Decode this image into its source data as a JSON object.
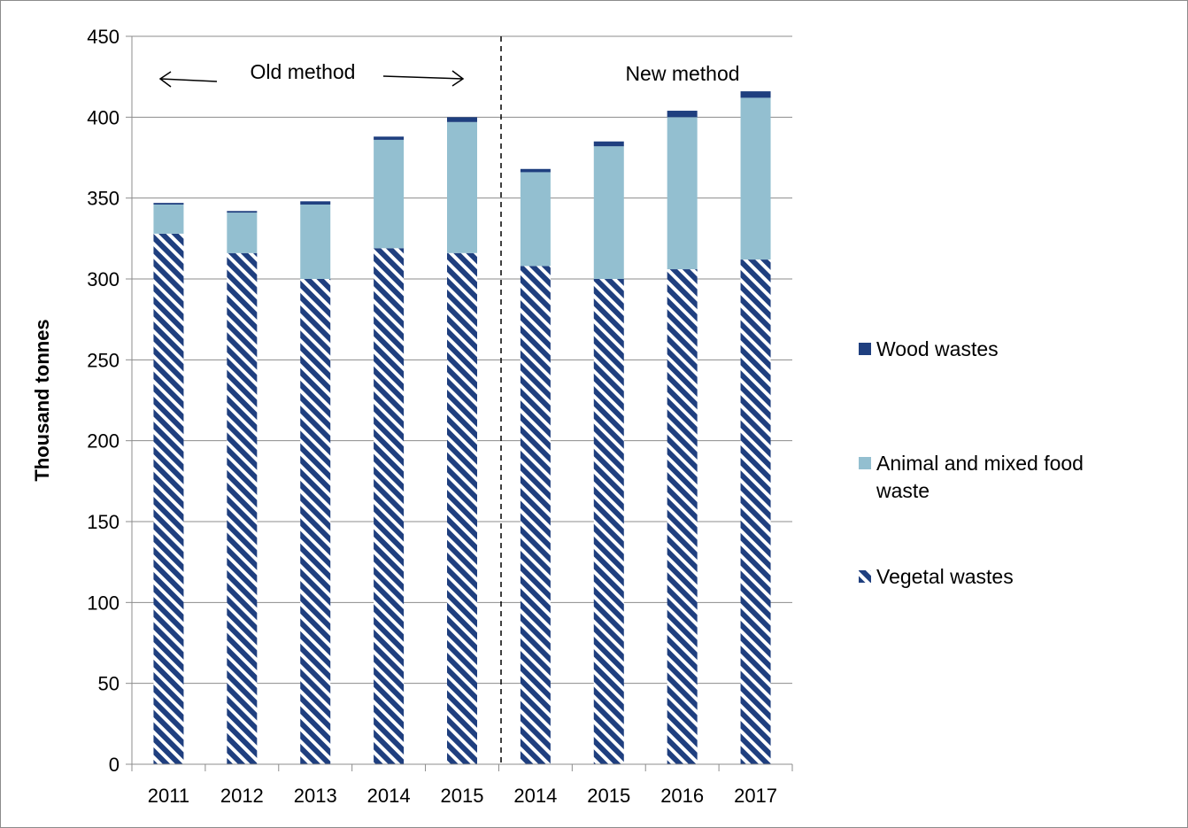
{
  "chart_data": {
    "type": "bar",
    "stacked": true,
    "title": "",
    "xlabel": "",
    "ylabel": "Thousand tonnes",
    "ylim": [
      0,
      450
    ],
    "yticks": [
      0,
      50,
      100,
      150,
      200,
      250,
      300,
      350,
      400,
      450
    ],
    "grid": true,
    "legend_position": "right",
    "categories": [
      "2011",
      "2012",
      "2013",
      "2014",
      "2015",
      "2014",
      "2015",
      "2016",
      "2017"
    ],
    "series": [
      {
        "name": "Vegetal wastes",
        "color": "#1f3f7f",
        "pattern": "diagonal-hatch",
        "values": [
          328,
          316,
          300,
          319,
          316,
          308,
          300,
          306,
          312
        ]
      },
      {
        "name": "Animal and mixed food waste",
        "color": "#93bfd0",
        "values": [
          18,
          25,
          46,
          67,
          81,
          58,
          82,
          94,
          100
        ]
      },
      {
        "name": "Wood wastes",
        "color": "#1f3f7f",
        "values": [
          1,
          1,
          2,
          2,
          3,
          2,
          3,
          4,
          4
        ]
      }
    ],
    "annotations": {
      "old_method": "Old method",
      "new_method": "New method"
    },
    "divider_after_index": 4
  }
}
